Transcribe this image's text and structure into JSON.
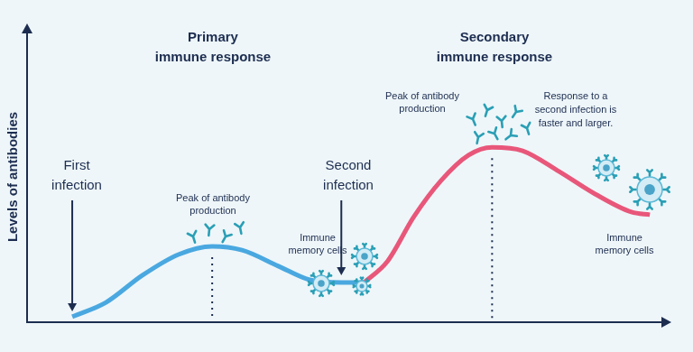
{
  "chart_data": {
    "type": "line",
    "section_titles": [
      [
        "Primary",
        "immune response"
      ],
      [
        "Secondary",
        "immune response"
      ]
    ],
    "ylabel": "Levels of antibodies",
    "annotations": [
      [
        "First",
        "infection"
      ],
      [
        "Peak of antibody",
        "production"
      ],
      [
        "Immune",
        "memory cells"
      ],
      [
        "Second",
        "infection"
      ],
      [
        "Peak of antibody",
        "production"
      ],
      [
        "Response to a",
        "second infection is",
        "faster and larger."
      ],
      [
        "Immune",
        "memory cells"
      ]
    ],
    "series": [
      {
        "color": "#4aa8e0",
        "x": [
          7.1,
          12.4,
          18.1,
          23.8,
          29.1,
          33.8,
          39.5,
          44.4,
          49.4,
          53.0
        ],
        "values": [
          1.9,
          6.8,
          16.1,
          23.3,
          26.1,
          24.8,
          19.3,
          14.6,
          13.7,
          13.7
        ]
      },
      {
        "color": "#e8577a",
        "x": [
          53.0,
          56.6,
          60.8,
          65.1,
          69.4,
          73.1,
          77.9,
          83.6,
          89.3,
          95.0,
          97.9
        ],
        "values": [
          13.7,
          20.8,
          36.3,
          48.8,
          57.5,
          60.2,
          59.0,
          51.9,
          44.1,
          37.9,
          37.0
        ]
      }
    ],
    "xlim": [
      0,
      100
    ],
    "ylim": [
      0,
      100
    ],
    "grid": false,
    "tick_labels": false
  }
}
